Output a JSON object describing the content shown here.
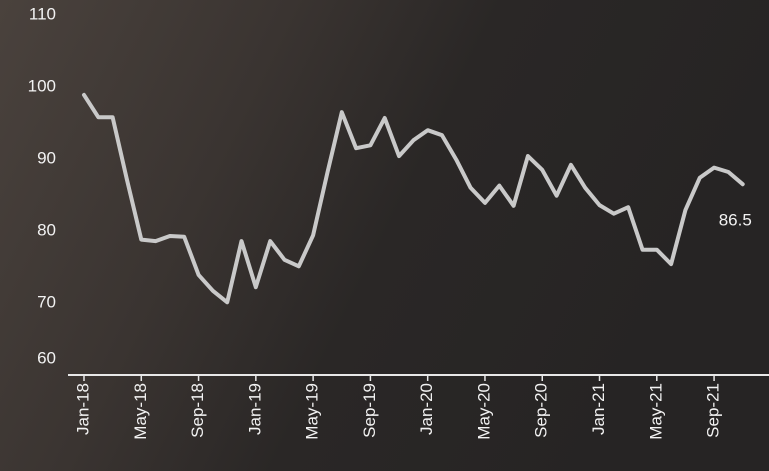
{
  "chart_data": {
    "type": "line",
    "categories": [
      "Jan-18",
      null,
      null,
      null,
      "May-18",
      null,
      null,
      null,
      "Sep-18",
      null,
      null,
      null,
      "Jan-19",
      null,
      null,
      null,
      "May-19",
      null,
      null,
      null,
      "Sep-19",
      null,
      null,
      null,
      "Jan-20",
      null,
      null,
      null,
      "May-20",
      null,
      null,
      null,
      "Sep-20",
      null,
      null,
      null,
      "Jan-21",
      null,
      null,
      null,
      "May-21",
      null,
      null,
      null,
      "Sep-21",
      null,
      null
    ],
    "series": [
      {
        "color": "#c9c9c9",
        "values": [
          98.9,
          95.8,
          95.8,
          87.1,
          78.8,
          78.6,
          79.3,
          79.2,
          73.9,
          71.7,
          70.1,
          78.6,
          72.2,
          78.6,
          76.0,
          75.1,
          79.4,
          88.1,
          96.5,
          91.5,
          91.9,
          95.7,
          90.4,
          92.6,
          94.0,
          93.3,
          89.9,
          86.0,
          83.9,
          86.3,
          83.5,
          90.4,
          88.5,
          84.9,
          89.2,
          86.0,
          83.6,
          82.4,
          83.3,
          77.4,
          77.4,
          75.4,
          82.9,
          87.4,
          88.8,
          88.2,
          86.5
        ]
      }
    ],
    "ylim": [
      60,
      112
    ],
    "yticks": [
      60,
      70,
      80,
      90,
      100,
      110
    ],
    "grid": false
  }
}
